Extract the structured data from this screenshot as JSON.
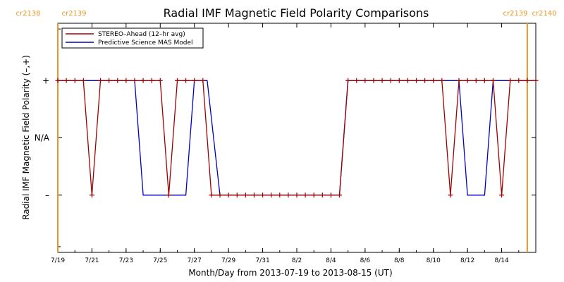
{
  "chart_data": {
    "type": "line",
    "title": "Radial IMF Magnetic Field Polarity Comparisons",
    "xlabel": "Month/Day from 2013-07-19 to 2013-08-15 (UT)",
    "ylabel": "Radial IMF Magnetic Field Polarity (–,+)",
    "x_range": [
      "2013-07-19",
      "2013-08-15"
    ],
    "x_ticks": [
      "7/19",
      "7/21",
      "7/23",
      "7/25",
      "7/27",
      "7/29",
      "7/31",
      "8/2",
      "8/4",
      "8/6",
      "8/8",
      "8/10",
      "8/12",
      "8/14"
    ],
    "y_ticks": [
      {
        "value": 1,
        "label": "+"
      },
      {
        "value": 0,
        "label": "N/A"
      },
      {
        "value": -1,
        "label": "–"
      }
    ],
    "ylim": [
      -2,
      2
    ],
    "carrington": {
      "left": {
        "date": "2013-07-19 00:00",
        "labels": [
          "cr2138",
          "cr2139"
        ]
      },
      "right": {
        "date": "2013-08-15 12:00",
        "labels": [
          "cr2139",
          "cr2140"
        ]
      },
      "color": "#e8962a"
    },
    "legend": {
      "placement": "top-left"
    },
    "series": [
      {
        "name": "STEREO–Ahead (12–hr avg)",
        "color": "#a00000",
        "marker": "plus",
        "points": [
          [
            "2013-07-19 00:00",
            1
          ],
          [
            "2013-07-19 12:00",
            1
          ],
          [
            "2013-07-20 00:00",
            1
          ],
          [
            "2013-07-20 12:00",
            1
          ],
          [
            "2013-07-21 00:00",
            -1
          ],
          [
            "2013-07-21 12:00",
            1
          ],
          [
            "2013-07-22 00:00",
            1
          ],
          [
            "2013-07-22 12:00",
            1
          ],
          [
            "2013-07-23 00:00",
            1
          ],
          [
            "2013-07-23 12:00",
            1
          ],
          [
            "2013-07-24 00:00",
            1
          ],
          [
            "2013-07-24 12:00",
            1
          ],
          [
            "2013-07-25 00:00",
            1
          ],
          [
            "2013-07-25 12:00",
            -1
          ],
          [
            "2013-07-26 00:00",
            1
          ],
          [
            "2013-07-26 12:00",
            1
          ],
          [
            "2013-07-27 00:00",
            1
          ],
          [
            "2013-07-27 12:00",
            1
          ],
          [
            "2013-07-28 00:00",
            -1
          ],
          [
            "2013-07-28 12:00",
            -1
          ],
          [
            "2013-07-29 00:00",
            -1
          ],
          [
            "2013-07-29 12:00",
            -1
          ],
          [
            "2013-07-30 00:00",
            -1
          ],
          [
            "2013-07-30 12:00",
            -1
          ],
          [
            "2013-07-31 00:00",
            -1
          ],
          [
            "2013-07-31 12:00",
            -1
          ],
          [
            "2013-08-01 00:00",
            -1
          ],
          [
            "2013-08-01 12:00",
            -1
          ],
          [
            "2013-08-02 00:00",
            -1
          ],
          [
            "2013-08-02 12:00",
            -1
          ],
          [
            "2013-08-03 00:00",
            -1
          ],
          [
            "2013-08-03 12:00",
            -1
          ],
          [
            "2013-08-04 00:00",
            -1
          ],
          [
            "2013-08-04 12:00",
            -1
          ],
          [
            "2013-08-05 00:00",
            1
          ],
          [
            "2013-08-05 12:00",
            1
          ],
          [
            "2013-08-06 00:00",
            1
          ],
          [
            "2013-08-06 12:00",
            1
          ],
          [
            "2013-08-07 00:00",
            1
          ],
          [
            "2013-08-07 12:00",
            1
          ],
          [
            "2013-08-08 00:00",
            1
          ],
          [
            "2013-08-08 12:00",
            1
          ],
          [
            "2013-08-09 00:00",
            1
          ],
          [
            "2013-08-09 12:00",
            1
          ],
          [
            "2013-08-10 00:00",
            1
          ],
          [
            "2013-08-10 12:00",
            1
          ],
          [
            "2013-08-11 00:00",
            -1
          ],
          [
            "2013-08-11 12:00",
            1
          ],
          [
            "2013-08-12 00:00",
            1
          ],
          [
            "2013-08-12 12:00",
            1
          ],
          [
            "2013-08-13 00:00",
            1
          ],
          [
            "2013-08-13 12:00",
            1
          ],
          [
            "2013-08-14 00:00",
            -1
          ],
          [
            "2013-08-14 12:00",
            1
          ],
          [
            "2013-08-15 00:00",
            1
          ],
          [
            "2013-08-15 12:00",
            1
          ],
          [
            "2013-08-16 00:00",
            1
          ]
        ]
      },
      {
        "name": "Predictive Science MAS Model",
        "color": "#0000c0",
        "marker": "none",
        "points": [
          [
            "2013-07-19 00:00",
            1
          ],
          [
            "2013-07-23 12:00",
            1
          ],
          [
            "2013-07-24 00:00",
            -1
          ],
          [
            "2013-07-26 12:00",
            -1
          ],
          [
            "2013-07-27 00:00",
            1
          ],
          [
            "2013-07-27 18:00",
            1
          ],
          [
            "2013-07-28 12:00",
            -1
          ],
          [
            "2013-08-04 12:00",
            -1
          ],
          [
            "2013-08-05 00:00",
            1
          ],
          [
            "2013-08-11 12:00",
            1
          ],
          [
            "2013-08-12 00:00",
            -1
          ],
          [
            "2013-08-13 00:00",
            -1
          ],
          [
            "2013-08-13 12:00",
            1
          ],
          [
            "2013-08-15 12:00",
            1
          ]
        ]
      }
    ]
  }
}
